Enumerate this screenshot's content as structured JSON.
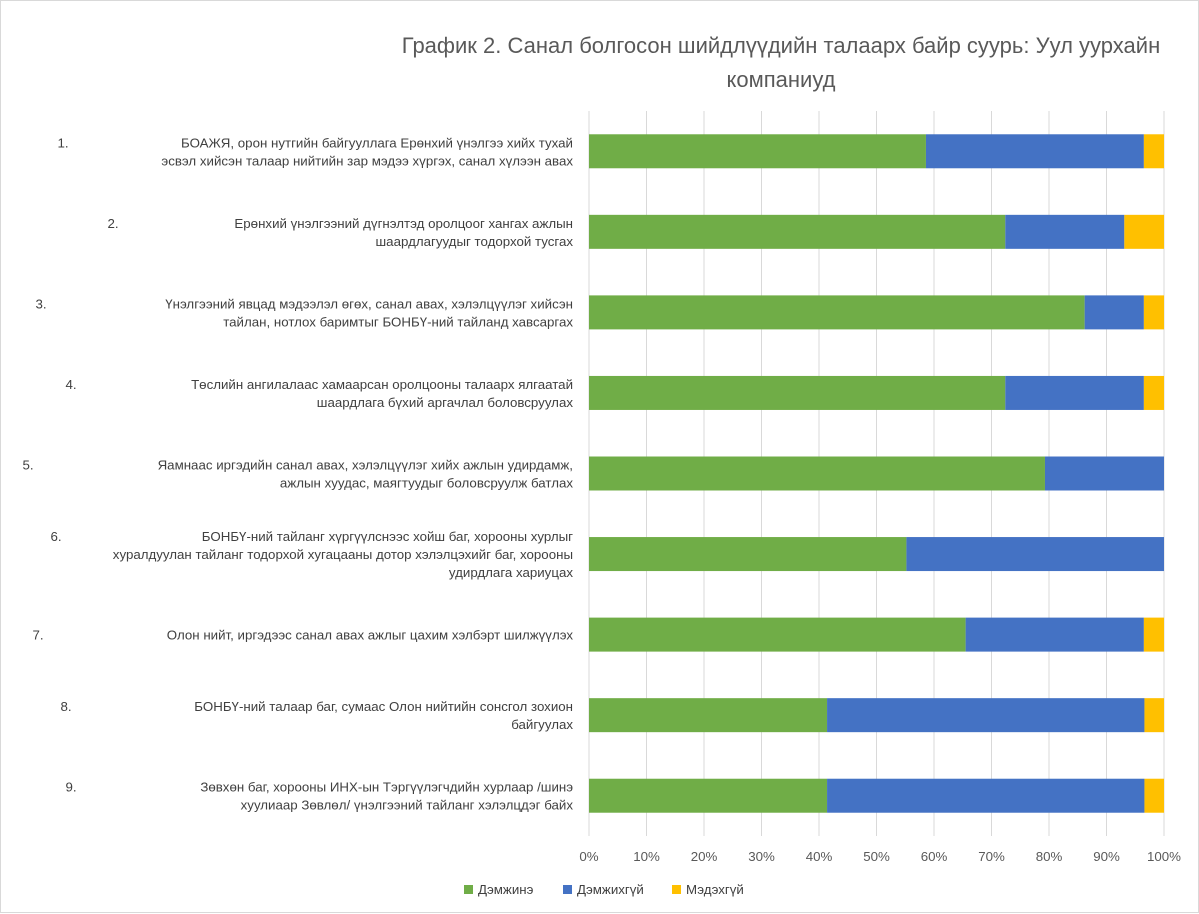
{
  "chart_data": {
    "type": "bar",
    "orientation": "horizontal",
    "stacked": "percent",
    "title": "График 2. Санал болгосон шийдлүүдийн талаарх байр суурь: Уул уурхайн компаниуд",
    "categories": [
      {
        "num": "1.",
        "lines": [
          "БОАЖЯ, орон нутгийн байгууллага Ерөнхий үнэлгээ хийх тухай",
          "эсвэл хийсэн талаар нийтийн зар мэдээ хүргэх, санал хүлээн авах"
        ]
      },
      {
        "num": "2.",
        "lines": [
          "Ерөнхий үнэлгээний дүгнэлтэд оролцоог хангах ажлын",
          "шаардлагуудыг тодорхой тусгах"
        ]
      },
      {
        "num": "3.",
        "lines": [
          "Үнэлгээний явцад мэдээлэл өгөх, санал авах, хэлэлцүүлэг хийсэн",
          "тайлан, нотлох баримтыг БОНБҮ-ний тайланд хавсаргах"
        ]
      },
      {
        "num": "4.",
        "lines": [
          "Төслийн ангилалаас хамаарсан оролцооны талаарх ялгаатай",
          "шаардлага бүхий аргачлал боловсруулах"
        ]
      },
      {
        "num": "5.",
        "lines": [
          "Яамнаас иргэдийн санал авах, хэлэлцүүлэг хийх ажлын удирдамж,",
          "ажлын хуудас, маягтуудыг боловсруулж батлах"
        ]
      },
      {
        "num": "6.",
        "lines": [
          "БОНБҮ-ний тайланг хүргүүлснээс хойш баг, хорооны хурлыг",
          "хуралдуулан тайланг тодорхой хугацааны дотор хэлэлцэхийг баг, хорооны",
          "удирдлага хариуцах"
        ]
      },
      {
        "num": "7.",
        "lines": [
          "Олон нийт, иргэдээс санал авах ажлыг цахим хэлбэрт шилжүүлэх"
        ]
      },
      {
        "num": "8.",
        "lines": [
          "БОНБҮ-ний талаар баг, сумаас Олон нийтийн сонсгол зохион",
          "байгуулах"
        ]
      },
      {
        "num": "9.",
        "lines": [
          "Зөвхөн баг, хорооны ИНХ-ын Тэргүүлэгчдийн хурлаар /шинэ",
          "хуулиаар Зөвлөл/ үнэлгээний тайланг хэлэлцдэг байх"
        ]
      }
    ],
    "series": [
      {
        "name": "Дэмжинэ",
        "color": "#70ad47",
        "values": [
          58.6,
          72.4,
          86.2,
          72.4,
          79.3,
          55.2,
          65.5,
          41.4,
          41.4
        ]
      },
      {
        "name": "Дэмжихгүй",
        "color": "#4472c4",
        "values": [
          37.9,
          20.7,
          10.3,
          24.1,
          20.7,
          44.8,
          31.0,
          55.2,
          55.2
        ]
      },
      {
        "name": "Мэдэхгүй",
        "color": "#ffc000",
        "values": [
          3.5,
          6.9,
          3.5,
          3.5,
          0,
          0,
          3.5,
          3.4,
          3.4
        ]
      }
    ],
    "xlim": [
      0,
      100
    ],
    "xticks": [
      "0%",
      "10%",
      "20%",
      "30%",
      "40%",
      "50%",
      "60%",
      "70%",
      "80%",
      "90%",
      "100%"
    ],
    "grid": true,
    "legend_position": "bottom"
  }
}
